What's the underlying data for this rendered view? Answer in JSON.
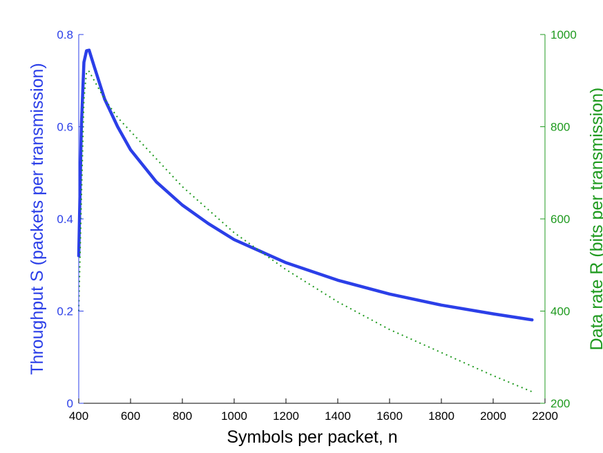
{
  "chart_data": {
    "type": "line",
    "xlabel": "Symbols per packet, n",
    "ylabel_left": "Throughput S (packets per transmission)",
    "ylabel_right": "Data rate R (bits per transmission)",
    "xlim": [
      400,
      2200
    ],
    "ylim_left": [
      0,
      0.8
    ],
    "ylim_right": [
      200,
      1000
    ],
    "xticks": [
      400,
      600,
      800,
      1000,
      1200,
      1400,
      1600,
      1800,
      2000,
      2200
    ],
    "yticks_left": [
      0,
      0.2,
      0.4,
      0.6,
      0.8
    ],
    "yticks_right": [
      200,
      400,
      600,
      800,
      1000
    ],
    "grid": false,
    "colors": {
      "left": "#2b3fe8",
      "right": "#1f9a1f",
      "axes": "#000000"
    },
    "series": [
      {
        "axis": "left",
        "style": "solid",
        "x": [
          400,
          410,
          420,
          430,
          440,
          460,
          500,
          550,
          600,
          700,
          800,
          900,
          1000,
          1200,
          1400,
          1600,
          1800,
          2000,
          2150
        ],
        "values": [
          0.32,
          0.6,
          0.74,
          0.765,
          0.766,
          0.73,
          0.66,
          0.6,
          0.55,
          0.48,
          0.43,
          0.39,
          0.355,
          0.305,
          0.267,
          0.237,
          0.213,
          0.194,
          0.181
        ]
      },
      {
        "axis": "right",
        "style": "dotted",
        "x": [
          400,
          410,
          420,
          430,
          440,
          460,
          500,
          550,
          600,
          700,
          800,
          900,
          1000,
          1200,
          1400,
          1600,
          1800,
          2000,
          2150
        ],
        "values": [
          400,
          640,
          860,
          920,
          920,
          900,
          860,
          820,
          790,
          730,
          670,
          620,
          570,
          490,
          420,
          360,
          310,
          260,
          225
        ]
      }
    ]
  }
}
